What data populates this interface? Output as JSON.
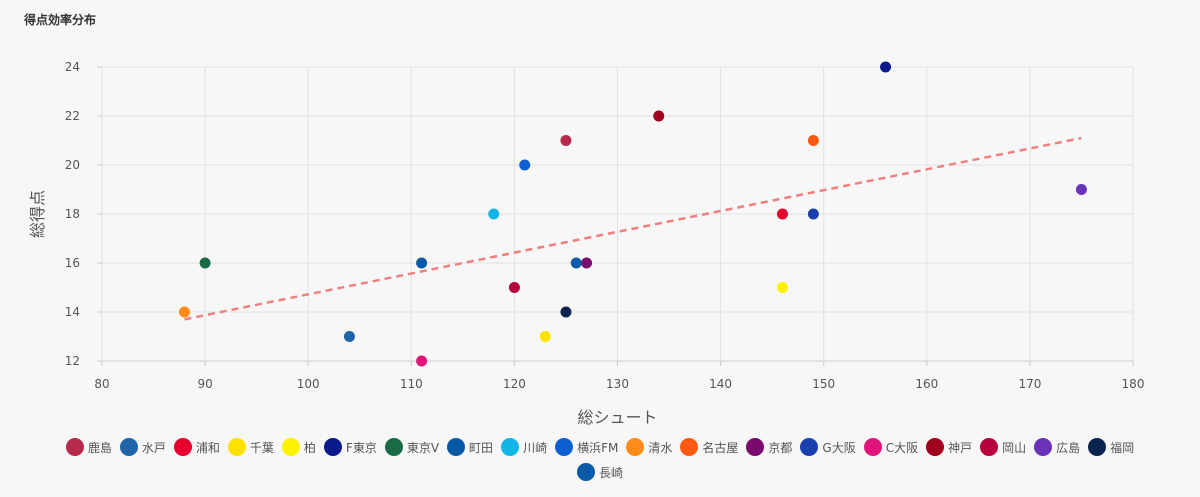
{
  "title": "得点効率分布",
  "chart_data": {
    "type": "scatter",
    "xlabel": "総シュート",
    "ylabel": "総得点",
    "xlim": [
      80,
      180
    ],
    "ylim": [
      12,
      24
    ],
    "xticks": [
      80,
      90,
      100,
      110,
      120,
      130,
      140,
      150,
      160,
      170,
      180
    ],
    "yticks": [
      12,
      14,
      16,
      18,
      20,
      22,
      24
    ],
    "grid": true,
    "legend_position": "bottom",
    "series": [
      {
        "name": "鹿島",
        "color": "#b52a4a",
        "x": 125,
        "y": 21
      },
      {
        "name": "水戸",
        "color": "#1f63a8",
        "x": 104,
        "y": 13
      },
      {
        "name": "浦和",
        "color": "#e6002d",
        "x": 146,
        "y": 18
      },
      {
        "name": "千葉",
        "color": "#ffe100",
        "x": 123,
        "y": 13
      },
      {
        "name": "柏",
        "color": "#fff200",
        "x": 146,
        "y": 15
      },
      {
        "name": "F東京",
        "color": "#0a1a8c",
        "x": 156,
        "y": 24
      },
      {
        "name": "東京V",
        "color": "#1a6b45",
        "x": 90,
        "y": 16
      },
      {
        "name": "町田",
        "color": "#0a58a8",
        "x": 111,
        "y": 16
      },
      {
        "name": "川崎",
        "color": "#13b4e6",
        "x": 118,
        "y": 18
      },
      {
        "name": "横浜FM",
        "color": "#0d5fd1",
        "x": 121,
        "y": 20
      },
      {
        "name": "清水",
        "color": "#ff8c1a",
        "x": 88,
        "y": 14
      },
      {
        "name": "名古屋",
        "color": "#ff5a14",
        "x": 149,
        "y": 21
      },
      {
        "name": "京都",
        "color": "#7a0a6e",
        "x": 127,
        "y": 16
      },
      {
        "name": "G大阪",
        "color": "#1a3fae",
        "x": 149,
        "y": 18
      },
      {
        "name": "C大阪",
        "color": "#e0147a",
        "x": 111,
        "y": 12
      },
      {
        "name": "神戸",
        "color": "#a0001e",
        "x": 134,
        "y": 22
      },
      {
        "name": "岡山",
        "color": "#b5003c",
        "x": 120,
        "y": 15
      },
      {
        "name": "広島",
        "color": "#6a32b8",
        "x": 175,
        "y": 19
      },
      {
        "name": "福岡",
        "color": "#0a2452",
        "x": 125,
        "y": 14
      },
      {
        "name": "長崎",
        "color": "#0a5aa8",
        "x": 126,
        "y": 16
      }
    ],
    "trendline": {
      "x": [
        88,
        175
      ],
      "y": [
        13.7,
        21.1
      ],
      "color": "#f08080",
      "style": "dashed"
    }
  }
}
